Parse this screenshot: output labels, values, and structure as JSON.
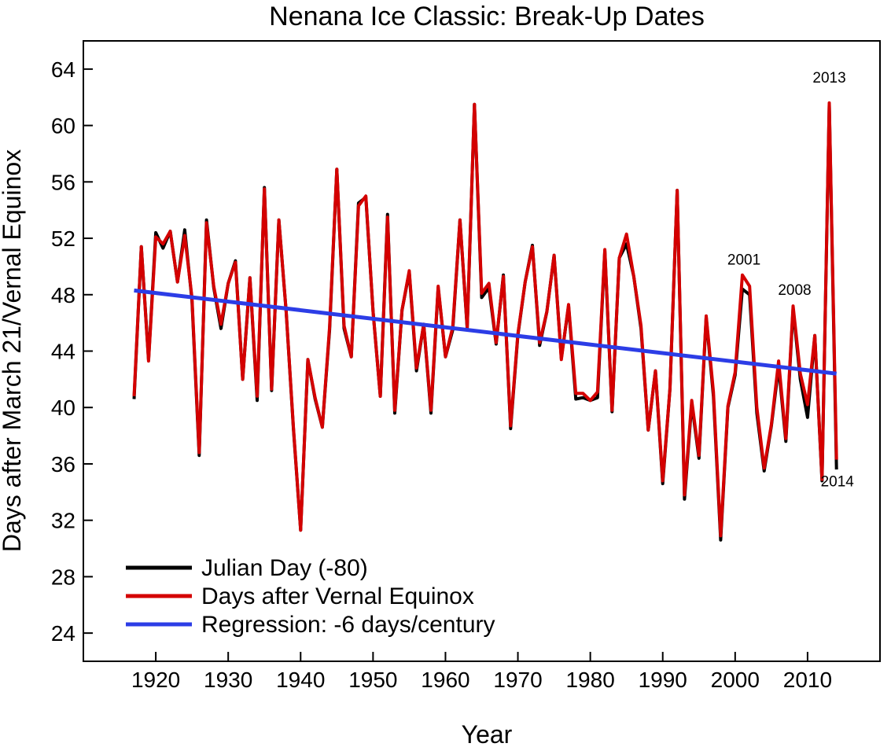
{
  "chart_data": {
    "type": "line",
    "title": "Nenana Ice Classic: Break-Up Dates",
    "xlabel": "Year",
    "ylabel": "Days after March 21/Vernal Equinox",
    "xlim": [
      1910,
      2020
    ],
    "ylim": [
      22,
      66
    ],
    "x_ticks": [
      1920,
      1930,
      1940,
      1950,
      1960,
      1970,
      1980,
      1990,
      2000,
      2010
    ],
    "y_ticks": [
      24,
      28,
      32,
      36,
      40,
      44,
      48,
      52,
      56,
      60,
      64
    ],
    "grid": false,
    "legend_position": "bottom-left",
    "x": [
      1917,
      1918,
      1919,
      1920,
      1921,
      1922,
      1923,
      1924,
      1925,
      1926,
      1927,
      1928,
      1929,
      1930,
      1931,
      1932,
      1933,
      1934,
      1935,
      1936,
      1937,
      1938,
      1939,
      1940,
      1941,
      1942,
      1943,
      1944,
      1945,
      1946,
      1947,
      1948,
      1949,
      1950,
      1951,
      1952,
      1953,
      1954,
      1955,
      1956,
      1957,
      1958,
      1959,
      1960,
      1961,
      1962,
      1963,
      1964,
      1965,
      1966,
      1967,
      1968,
      1969,
      1970,
      1971,
      1972,
      1973,
      1974,
      1975,
      1976,
      1977,
      1978,
      1979,
      1980,
      1981,
      1982,
      1983,
      1984,
      1985,
      1986,
      1987,
      1988,
      1989,
      1990,
      1991,
      1992,
      1993,
      1994,
      1995,
      1996,
      1997,
      1998,
      1999,
      2000,
      2001,
      2002,
      2003,
      2004,
      2005,
      2006,
      2007,
      2008,
      2009,
      2010,
      2011,
      2012,
      2013,
      2014
    ],
    "series": [
      {
        "name": "Julian Day (-80)",
        "color": "#000000",
        "values": [
          40.6,
          51.4,
          43.4,
          52.4,
          51.3,
          52.5,
          48.9,
          52.6,
          47.6,
          36.6,
          53.3,
          48.5,
          45.6,
          48.8,
          50.4,
          42.0,
          49.2,
          40.5,
          55.6,
          41.2,
          53.3,
          46.8,
          38.5,
          31.3,
          43.4,
          40.6,
          38.6,
          45.5,
          56.9,
          45.6,
          43.6,
          54.5,
          54.9,
          46.8,
          40.8,
          53.7,
          39.6,
          46.9,
          49.6,
          42.6,
          45.9,
          39.6,
          48.5,
          43.6,
          45.5,
          53.3,
          45.6,
          61.5,
          47.8,
          48.5,
          44.5,
          49.4,
          38.5,
          45.1,
          48.9,
          51.5,
          44.4,
          46.8,
          50.8,
          43.5,
          47.2,
          40.6,
          40.7,
          40.5,
          40.7,
          51.1,
          39.7,
          50.6,
          51.6,
          49.3,
          45.6,
          38.4,
          42.6,
          34.6,
          41.3,
          55.4,
          33.5,
          40.3,
          36.4,
          46.4,
          40.8,
          30.6,
          40.0,
          42.3,
          48.4,
          48.0,
          39.6,
          35.5,
          38.7,
          42.9,
          37.6,
          47.0,
          42.0,
          39.3,
          45.1,
          34.8,
          61.5,
          35.6
        ]
      },
      {
        "name": "Days after Vernal Equinox",
        "color": "#d40000",
        "values": [
          40.8,
          51.4,
          43.3,
          52.1,
          51.6,
          52.5,
          48.9,
          52.2,
          47.8,
          36.8,
          53.1,
          48.6,
          45.9,
          48.8,
          50.3,
          42.0,
          49.2,
          40.8,
          55.5,
          41.3,
          53.3,
          46.8,
          38.6,
          31.3,
          43.4,
          40.7,
          38.6,
          45.7,
          56.9,
          45.8,
          43.6,
          54.3,
          55.0,
          46.8,
          40.8,
          53.5,
          39.8,
          46.9,
          49.7,
          42.8,
          45.9,
          39.8,
          48.6,
          43.6,
          45.7,
          53.3,
          45.7,
          61.5,
          48.1,
          48.8,
          44.6,
          49.3,
          38.7,
          45.2,
          48.9,
          51.4,
          44.6,
          46.8,
          50.8,
          43.4,
          47.3,
          41.0,
          41.0,
          40.5,
          41.1,
          51.2,
          39.8,
          50.6,
          52.3,
          49.3,
          45.8,
          38.4,
          42.6,
          34.8,
          41.3,
          55.4,
          33.8,
          40.5,
          36.6,
          46.5,
          41.1,
          30.9,
          40.1,
          42.5,
          49.4,
          48.6,
          40.0,
          35.7,
          38.8,
          43.3,
          37.8,
          47.2,
          42.4,
          40.2,
          45.1,
          34.9,
          61.6,
          36.3
        ]
      },
      {
        "name": "Regression: -6 days/century",
        "color": "#2c3de6",
        "values": [
          48.3,
          42.4
        ],
        "x": [
          1917,
          2014
        ]
      }
    ],
    "annotations": [
      {
        "text": "2013",
        "x": 2013,
        "y": 61.6
      },
      {
        "text": "2001",
        "x": 2001,
        "y": 49.4
      },
      {
        "text": "2008",
        "x": 2008,
        "y": 47.2
      },
      {
        "text": "2014",
        "x": 2014,
        "y": 36.3
      }
    ]
  }
}
